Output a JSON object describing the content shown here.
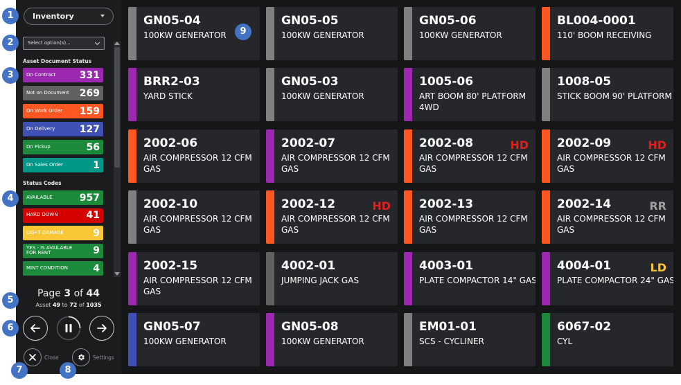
{
  "sidebar": {
    "inventory_label": "Inventory",
    "options_placeholder": "Select option(s)...",
    "doc_status_title": "Asset Document Status",
    "doc_status": [
      {
        "label": "On Contract",
        "count": "331",
        "color": "#9c27b0"
      },
      {
        "label": "Not on Document",
        "count": "269",
        "color": "#616161"
      },
      {
        "label": "On Work Order",
        "count": "159",
        "color": "#ff5722"
      },
      {
        "label": "On Delivery",
        "count": "127",
        "color": "#3f51b5"
      },
      {
        "label": "On Pickup",
        "count": "56",
        "color": "#1b8a3b"
      },
      {
        "label": "On Sales Order",
        "count": "1",
        "color": "#009688"
      }
    ],
    "status_codes_title": "Status Codes",
    "status_codes": [
      {
        "label": "AVAILABLE",
        "count": "957",
        "color": "#1b8a3b"
      },
      {
        "label": "HARD DOWN",
        "count": "41",
        "color": "#d50000"
      },
      {
        "label": "LIGHT DAMAGE",
        "count": "9",
        "color": "#f9c735"
      },
      {
        "label": "YES - IS AVAILABLE FOR RENT",
        "count": "9",
        "color": "#1b8a3b"
      },
      {
        "label": "MINT CONDITION",
        "count": "4",
        "color": "#1b8a3b"
      }
    ],
    "pager": {
      "page_word": "Page",
      "page": "3",
      "of_word": "of",
      "total_pages": "44",
      "asset_word": "Asset",
      "from": "49",
      "to_word": "to",
      "to": "72",
      "total": "1035"
    },
    "close_label": "Close",
    "settings_label": "Settings"
  },
  "cards": [
    {
      "id": "GN05-04",
      "desc": "100KW GENERATOR",
      "color": "#808080",
      "tag": ""
    },
    {
      "id": "GN05-05",
      "desc": "100KW GENERATOR",
      "color": "#808080",
      "tag": ""
    },
    {
      "id": "GN05-06",
      "desc": "100KW GENERATOR",
      "color": "#808080",
      "tag": ""
    },
    {
      "id": "BL004-0001",
      "desc": "110' BOOM RECEIVING",
      "color": "#ff5722",
      "tag": ""
    },
    {
      "id": "BRR2-03",
      "desc": "YARD STICK",
      "color": "#9c27b0",
      "tag": ""
    },
    {
      "id": "GN05-03",
      "desc": "100KW GENERATOR",
      "color": "#808080",
      "tag": ""
    },
    {
      "id": "1005-06",
      "desc": "ART BOOM 80' PLATFORM 4WD",
      "color": "#9c27b0",
      "tag": ""
    },
    {
      "id": "1008-05",
      "desc": "STICK BOOM 90' PLATFORM",
      "color": "#808080",
      "tag": ""
    },
    {
      "id": "2002-06",
      "desc": "AIR COMPRESSOR 12 CFM GAS",
      "color": "#ff5722",
      "tag": ""
    },
    {
      "id": "2002-07",
      "desc": "AIR COMPRESSOR 12 CFM GAS",
      "color": "#9c27b0",
      "tag": ""
    },
    {
      "id": "2002-08",
      "desc": "AIR COMPRESSOR 12 CFM GAS",
      "color": "#ff5722",
      "tag": "HD",
      "tag_color": "#e02020"
    },
    {
      "id": "2002-09",
      "desc": "AIR COMPRESSOR 12 CFM GAS",
      "color": "#ff5722",
      "tag": "HD",
      "tag_color": "#e02020"
    },
    {
      "id": "2002-10",
      "desc": "AIR COMPRESSOR 12 CFM GAS",
      "color": "#808080",
      "tag": ""
    },
    {
      "id": "2002-12",
      "desc": "AIR COMPRESSOR 12 CFM GAS",
      "color": "#ff5722",
      "tag": "HD",
      "tag_color": "#e02020"
    },
    {
      "id": "2002-13",
      "desc": "AIR COMPRESSOR 12 CFM GAS",
      "color": "#ff5722",
      "tag": ""
    },
    {
      "id": "2002-14",
      "desc": "AIR COMPRESSOR 12 CFM GAS",
      "color": "#ff5722",
      "tag": "RR",
      "tag_color": "#9e9e9e"
    },
    {
      "id": "2002-15",
      "desc": "AIR COMPRESSOR 12 CFM GAS",
      "color": "#9c27b0",
      "tag": ""
    },
    {
      "id": "4002-01",
      "desc": "JUMPING JACK GAS",
      "color": "#616161",
      "tag": ""
    },
    {
      "id": "4003-01",
      "desc": "PLATE COMPACTOR 14\" GAS",
      "color": "#9c27b0",
      "tag": ""
    },
    {
      "id": "4004-01",
      "desc": "PLATE COMPACTOR 24\" GAS",
      "color": "#9c27b0",
      "tag": "LD",
      "tag_color": "#f9c735"
    },
    {
      "id": "GN05-07",
      "desc": "100KW GENERATOR",
      "color": "#3f51b5",
      "tag": ""
    },
    {
      "id": "GN05-08",
      "desc": "100KW GENERATOR",
      "color": "#9c27b0",
      "tag": ""
    },
    {
      "id": "EM01-01",
      "desc": "SCS - CYCLINER",
      "color": "#808080",
      "tag": ""
    },
    {
      "id": "6067-02",
      "desc": "CYL",
      "color": "#1b8a3b",
      "tag": ""
    }
  ],
  "badges": [
    "1",
    "2",
    "3",
    "4",
    "5",
    "6",
    "7",
    "8",
    "9"
  ],
  "icons": {
    "prev": "arrow-left-icon",
    "pause": "pause-icon",
    "next": "arrow-right-icon",
    "close": "close-icon",
    "settings": "gear-icon"
  }
}
